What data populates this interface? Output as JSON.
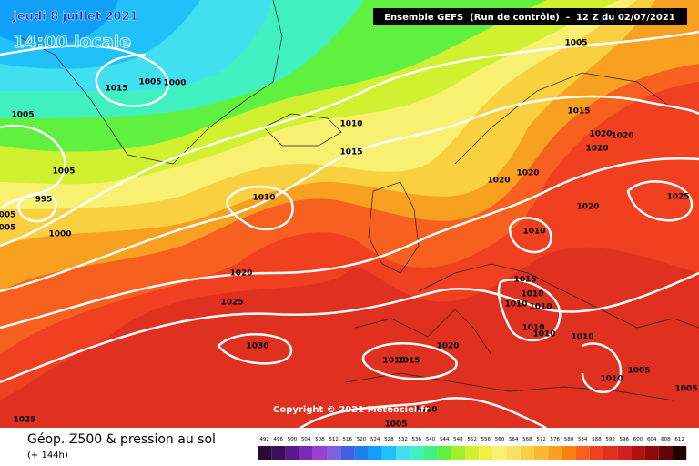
{
  "header": {
    "date": "Jeudi 8 juillet 2021",
    "time": "14:00 locale",
    "model": "Ensemble GEFS  (Run de contrôle)  -  12 Z du 02/07/2021"
  },
  "isobar_labels": [
    1005,
    1000,
    1015,
    1005,
    1005,
    995,
    "005",
    "005",
    1000,
    1010,
    1015,
    1010,
    1005,
    1015,
    1020,
    1020,
    1020,
    1020,
    1020,
    1025,
    1020,
    1010,
    1020,
    1025,
    1015,
    1010,
    1010,
    1010,
    1010,
    1010,
    1010,
    1030,
    1020,
    1010,
    1015,
    1010,
    1005,
    1005,
    1025,
    1005,
    1010
  ],
  "copyright": "Copyright © 2021 Meteociel.fr",
  "footer": {
    "title": "Géop. Z500 & pression au sol",
    "lead": "(+ 144h)"
  },
  "scale": {
    "labels": [
      492,
      496,
      500,
      504,
      508,
      512,
      516,
      520,
      524,
      528,
      532,
      536,
      540,
      544,
      548,
      552,
      556,
      560,
      564,
      568,
      572,
      576,
      580,
      584,
      588,
      592,
      596,
      600,
      604,
      608,
      612
    ],
    "colors": [
      "#2a0a3a",
      "#3c0f5a",
      "#5a1a8a",
      "#7a2ab0",
      "#9a40d0",
      "#8060e0",
      "#4060e0",
      "#2080f0",
      "#10a0f8",
      "#20c0f8",
      "#40e0f0",
      "#40f0c0",
      "#40f080",
      "#60f040",
      "#a0f030",
      "#d0f030",
      "#f0f040",
      "#f8f070",
      "#f8e060",
      "#f8d040",
      "#f8b830",
      "#f8a020",
      "#f88010",
      "#f86020",
      "#f04020",
      "#e03020",
      "#d02020",
      "#b01010",
      "#900808",
      "#600404",
      "#200000"
    ]
  }
}
